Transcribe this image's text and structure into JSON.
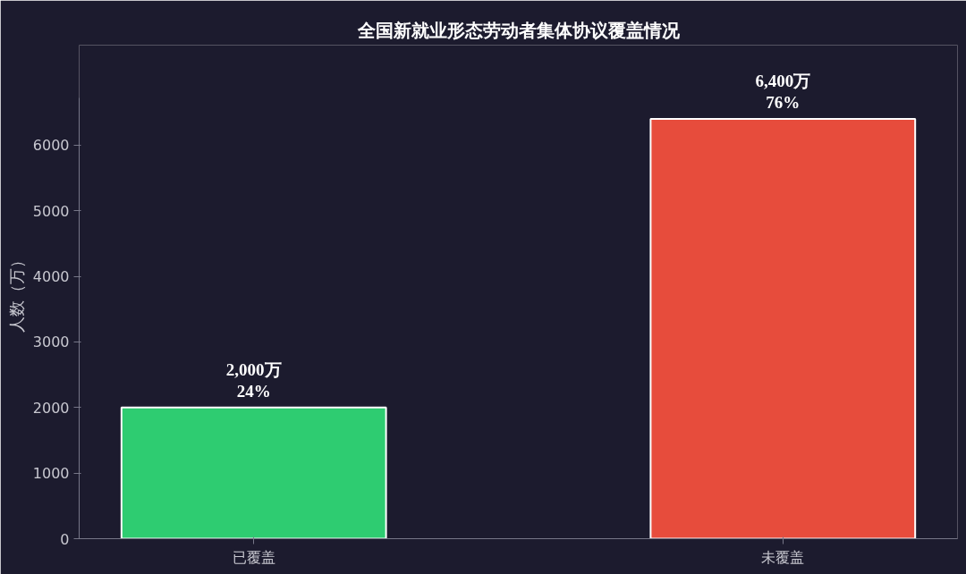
{
  "chart_data": {
    "type": "bar",
    "title": "全国新就业形态劳动者集体协议覆盖情况",
    "ylabel": "人数（万）",
    "categories": [
      "已覆盖",
      "未覆盖"
    ],
    "values": [
      2000,
      6400
    ],
    "colors": [
      "#2ecc71",
      "#e74c3c"
    ],
    "value_labels": [
      "2,000万\n24%",
      "6,400万\n76%"
    ],
    "ylim": [
      0,
      6720
    ],
    "yticks": [
      0,
      1000,
      2000,
      3000,
      4000,
      5000,
      6000
    ],
    "grid": false
  }
}
